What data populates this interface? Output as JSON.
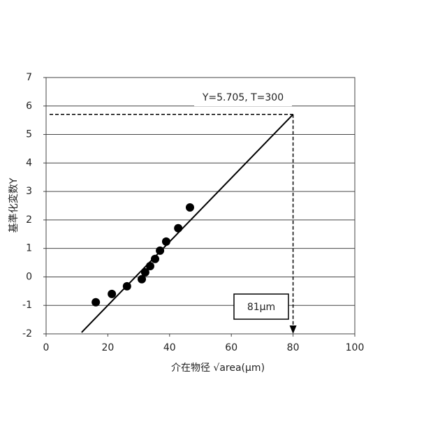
{
  "chart_data": {
    "type": "scatter",
    "x_label": "介在物径 √area(μm)",
    "y_label": "基準化変数Y",
    "xlim": [
      0,
      100
    ],
    "xticks": [
      0,
      20,
      40,
      60,
      80,
      100
    ],
    "ylim": [
      -2,
      7
    ],
    "yticks": [
      -2,
      -1,
      0,
      1,
      2,
      3,
      4,
      5,
      6,
      7
    ],
    "grid": true,
    "color": "#000000",
    "points": {
      "x": [
        16.1,
        21.3,
        26.2,
        31,
        32.1,
        33.7,
        35.3,
        36.9,
        38.9,
        42.8,
        46.6
      ],
      "y": [
        -0.89,
        -0.6,
        -0.33,
        -0.08,
        0.16,
        0.38,
        0.63,
        0.92,
        1.24,
        1.71,
        2.44
      ]
    },
    "fit_line": {
      "x": [
        11.5,
        80
      ],
      "y": [
        -1.95,
        5.705
      ]
    },
    "annotations": [
      {
        "text": "Y=5.705, T=300"
      },
      {
        "text": "81μm"
      }
    ]
  }
}
